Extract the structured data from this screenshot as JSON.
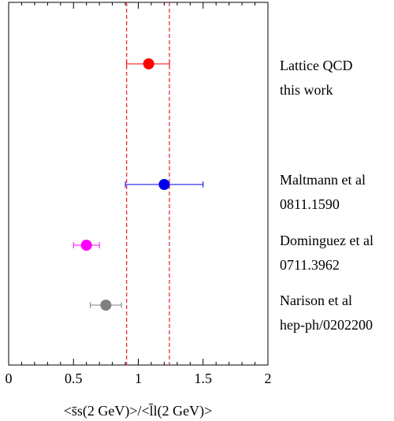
{
  "chart_data": {
    "type": "scatter",
    "title": "",
    "xlabel": "<s̄s(2 GeV)>/<l̄l(2 GeV)>",
    "ylabel": "",
    "xlim": [
      0,
      2
    ],
    "x_ticks": [
      0,
      0.5,
      1,
      1.5,
      2
    ],
    "x_tick_labels": [
      "0",
      "0.5",
      "1",
      "1.5",
      "2"
    ],
    "grid": false,
    "band": {
      "lower": 0.91,
      "upper": 1.24,
      "color": "#e8202a",
      "style": "dashed"
    },
    "entries": [
      {
        "label_lines": [
          "Lattice QCD",
          "this work"
        ],
        "value": 1.08,
        "err_low": 0.17,
        "err_high": 0.16,
        "color": "#ff0000"
      },
      {
        "label_lines": [
          "Maltmann et al",
          "0811.1590"
        ],
        "value": 1.2,
        "err_low": 0.3,
        "err_high": 0.3,
        "color": "#0000ee"
      },
      {
        "label_lines": [
          "Dominguez et al",
          "0711.3962"
        ],
        "value": 0.6,
        "err_low": 0.1,
        "err_high": 0.1,
        "color": "#ff00ff"
      },
      {
        "label_lines": [
          "Narison et al",
          "hep-ph/0202200"
        ],
        "value": 0.75,
        "err_low": 0.12,
        "err_high": 0.12,
        "color": "#808080"
      }
    ]
  }
}
